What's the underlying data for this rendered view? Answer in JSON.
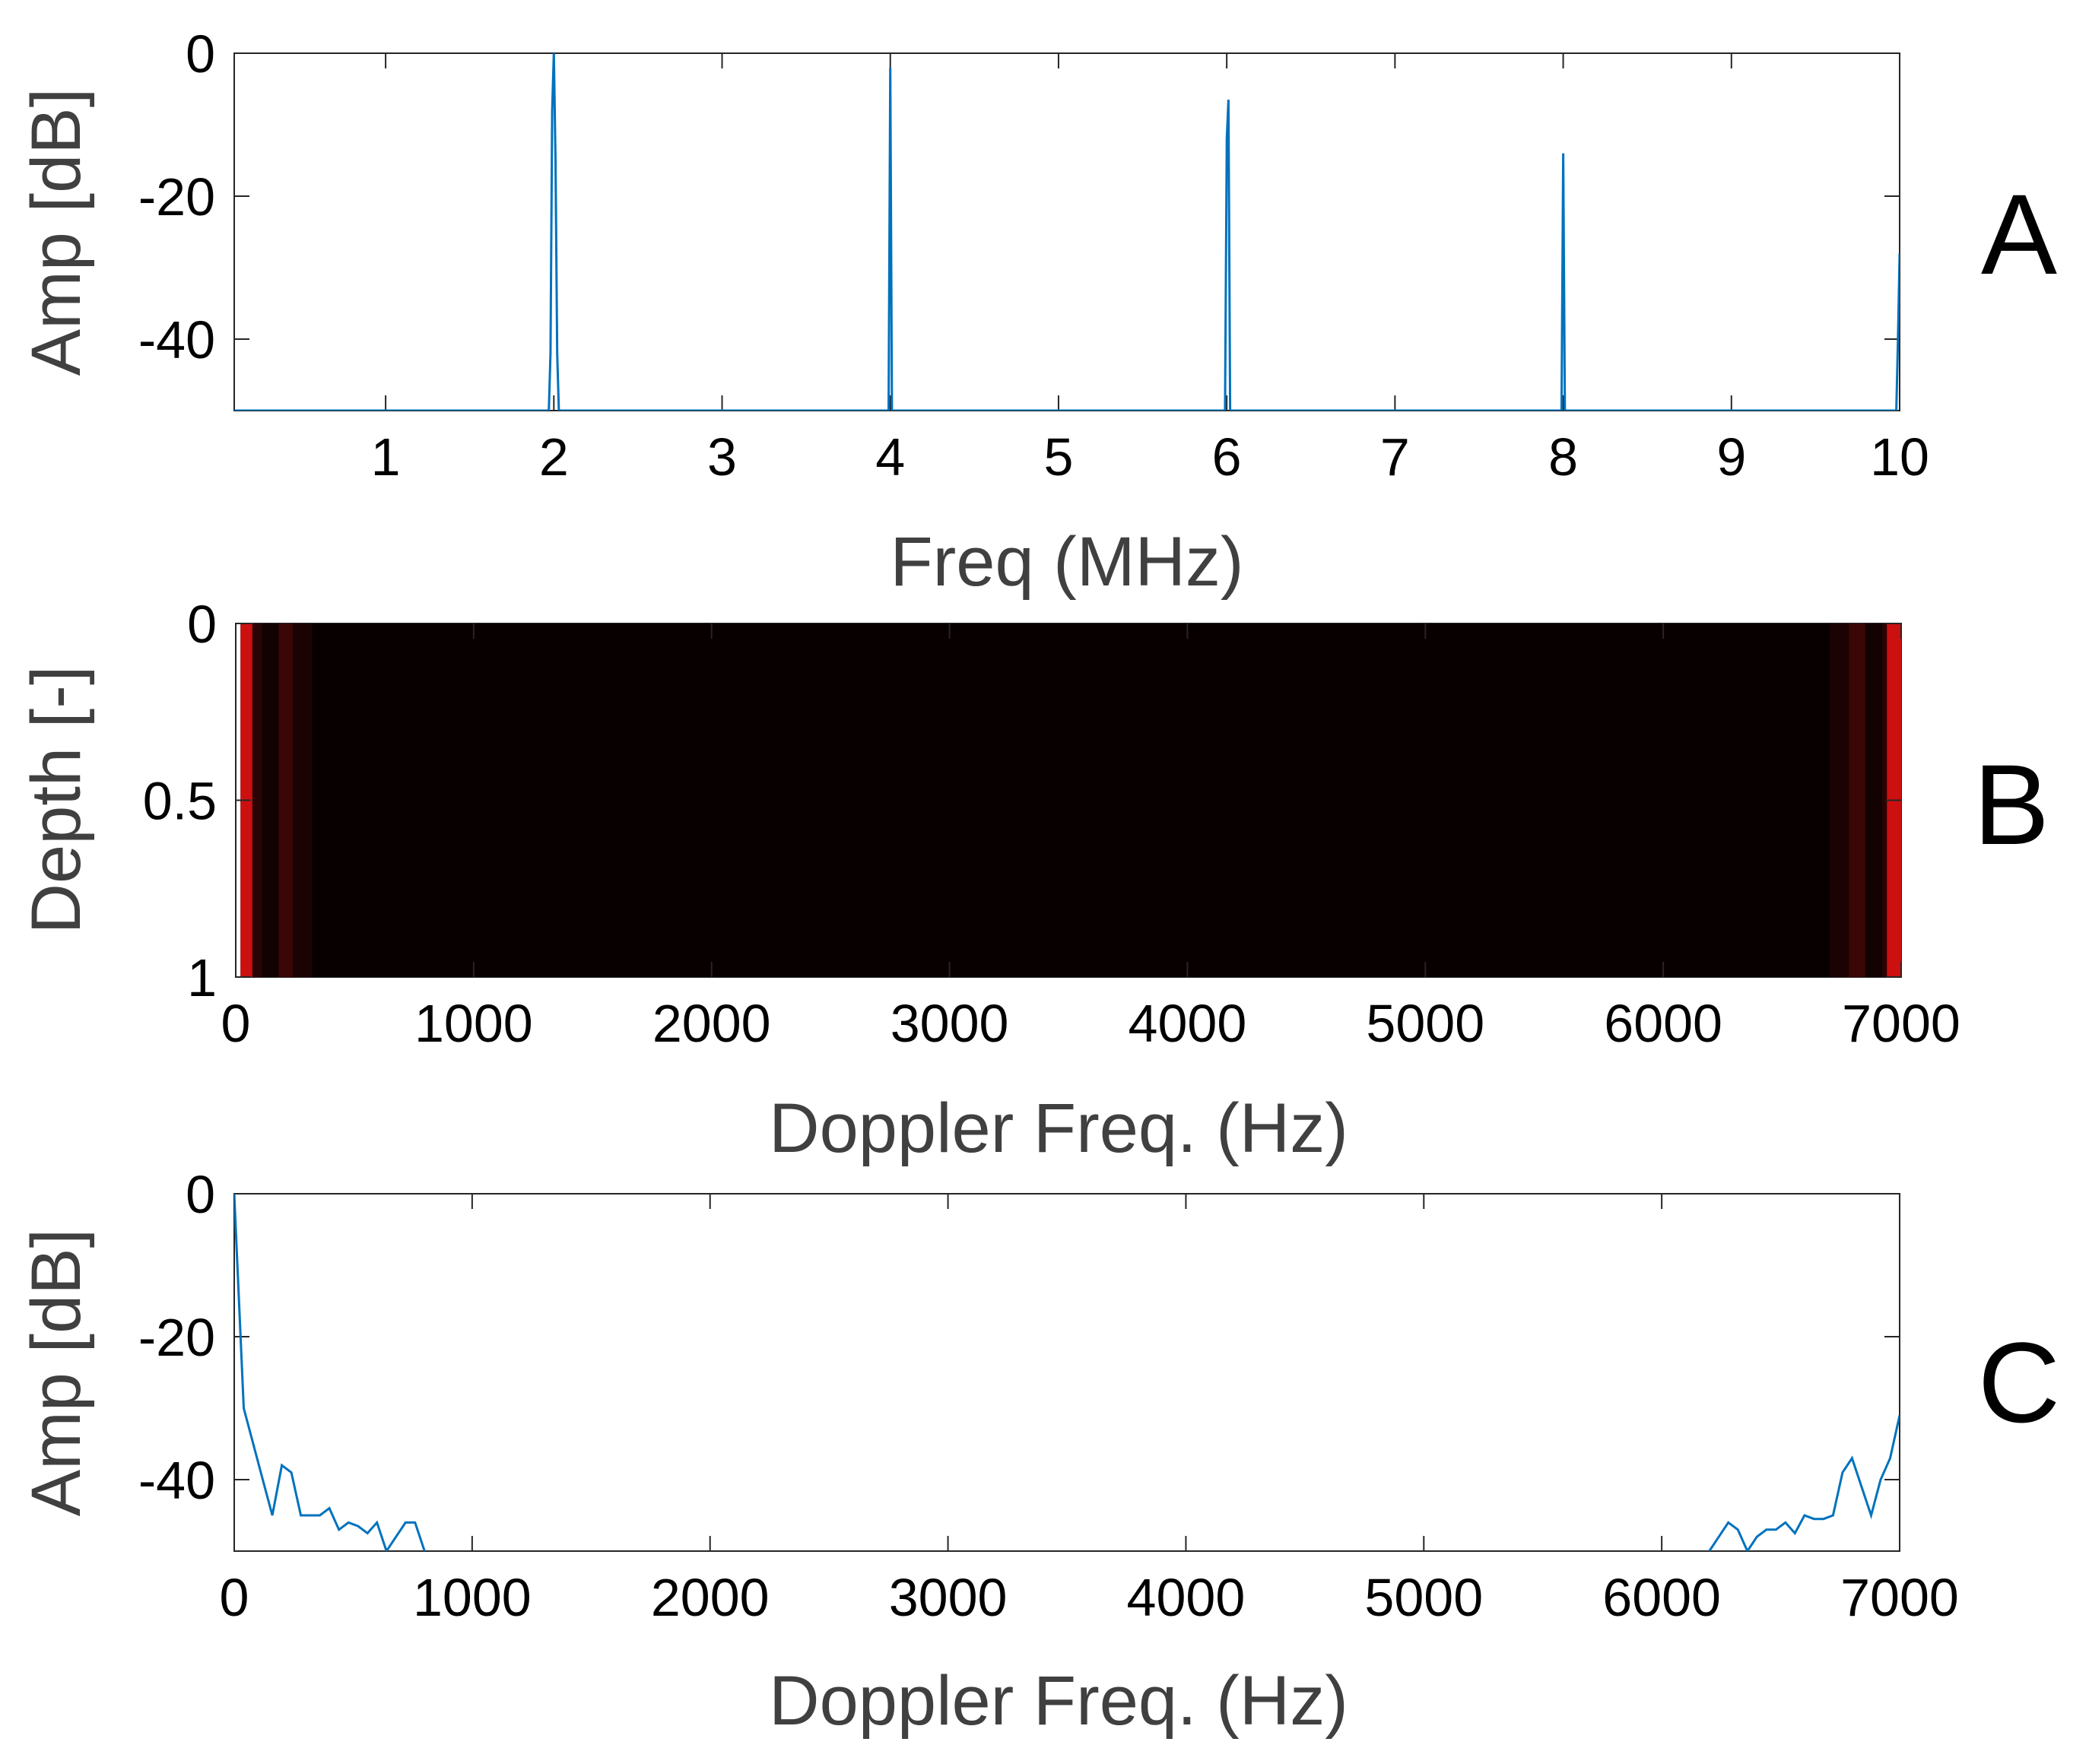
{
  "chart_data": [
    {
      "type": "line",
      "panel_label": "A",
      "xlabel": "Freq (MHz)",
      "ylabel": "Amp [dB]",
      "xlim": [
        0.1,
        10
      ],
      "ylim": [
        -50,
        0
      ],
      "xticks": [
        "1",
        "2",
        "3",
        "4",
        "5",
        "6",
        "7",
        "8",
        "9",
        "10"
      ],
      "yticks": [
        "0",
        "-20",
        "-40"
      ],
      "yticks_values": [
        0,
        -20,
        -40
      ],
      "xticks_values": [
        1,
        2,
        3,
        4,
        5,
        6,
        7,
        8,
        9,
        10
      ],
      "grid": false,
      "line_color": "#0072BD",
      "series": [
        {
          "x": [
            0.1,
            1.97,
            1.98,
            1.99,
            2.0,
            2.01,
            2.02,
            2.03,
            3.99,
            4.0,
            4.01,
            5.99,
            6.0,
            6.01,
            6.02,
            7.99,
            8.0,
            8.01,
            9.98,
            9.99,
            10.0
          ],
          "y": [
            -50,
            -50,
            -42,
            -8,
            0,
            -15,
            -42,
            -50,
            -50,
            -2,
            -50,
            -50,
            -12,
            -6.5,
            -50,
            -50,
            -14,
            -50,
            -50,
            -40,
            -28
          ]
        }
      ]
    },
    {
      "type": "heatmap",
      "panel_label": "B",
      "xlabel": "Doppler Freq. (Hz)",
      "ylabel": "Depth [-]",
      "xlim": [
        0,
        7000
      ],
      "ylim": [
        0,
        1
      ],
      "xticks": [
        "0",
        "1000",
        "2000",
        "3000",
        "4000",
        "5000",
        "6000",
        "7000"
      ],
      "xticks_values": [
        0,
        1000,
        2000,
        3000,
        4000,
        5000,
        6000,
        7000
      ],
      "yticks": [
        "0",
        "0.5",
        "1"
      ],
      "yticks_values": [
        0,
        0.5,
        1
      ],
      "y_reversed": true,
      "background_color": "#080000",
      "bands": [
        {
          "x0": 20,
          "x1": 70,
          "color": "#cc1010"
        },
        {
          "x0": 70,
          "x1": 110,
          "color": "#2a0404"
        },
        {
          "x0": 110,
          "x1": 180,
          "color": "#120202"
        },
        {
          "x0": 180,
          "x1": 240,
          "color": "#3a0606"
        },
        {
          "x0": 240,
          "x1": 320,
          "color": "#1c0303"
        },
        {
          "x0": 6700,
          "x1": 6780,
          "color": "#1c0303"
        },
        {
          "x0": 6780,
          "x1": 6850,
          "color": "#3a0606"
        },
        {
          "x0": 6850,
          "x1": 6920,
          "color": "#120202"
        },
        {
          "x0": 6920,
          "x1": 6940,
          "color": "#2a0404"
        },
        {
          "x0": 6940,
          "x1": 7000,
          "color": "#cc1010"
        }
      ]
    },
    {
      "type": "line",
      "panel_label": "C",
      "xlabel": "Doppler Freq. (Hz)",
      "ylabel": "Amp [dB]",
      "xlim": [
        0,
        7000
      ],
      "ylim": [
        -50,
        0
      ],
      "xticks": [
        "0",
        "1000",
        "2000",
        "3000",
        "4000",
        "5000",
        "6000",
        "7000"
      ],
      "xticks_values": [
        0,
        1000,
        2000,
        3000,
        4000,
        5000,
        6000,
        7000
      ],
      "yticks": [
        "0",
        "-20",
        "-40"
      ],
      "yticks_values": [
        0,
        -20,
        -40
      ],
      "grid": false,
      "line_color": "#0072BD",
      "series": [
        {
          "x": [
            0,
            40,
            80,
            120,
            160,
            200,
            240,
            280,
            320,
            360,
            400,
            440,
            480,
            520,
            560,
            600,
            640,
            680,
            720,
            760,
            800
          ],
          "y": [
            0,
            -30,
            -35,
            -40,
            -45,
            -38,
            -39,
            -45,
            -45,
            -45,
            -44,
            -47,
            -46,
            -46.5,
            -47.5,
            -46,
            -50,
            -48,
            -46,
            -46,
            -50
          ]
        },
        {
          "x": [
            6200,
            6240,
            6280,
            6320,
            6360,
            6400,
            6440,
            6480,
            6520,
            6560,
            6600,
            6640,
            6680,
            6720,
            6760,
            6800,
            6840,
            6880,
            6920,
            6960,
            7000
          ],
          "y": [
            -50,
            -48,
            -46,
            -47,
            -50,
            -48,
            -47,
            -47,
            -46,
            -47.5,
            -45,
            -45.5,
            -45.5,
            -45,
            -39,
            -37,
            -41,
            -45,
            -40,
            -37,
            -31
          ]
        }
      ]
    }
  ]
}
